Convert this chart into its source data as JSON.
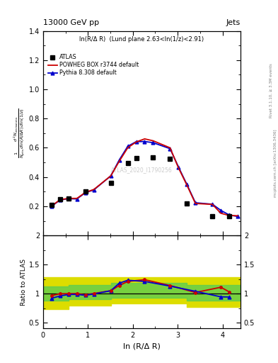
{
  "title_left": "13000 GeV pp",
  "title_right": "Jets",
  "plot_label": "ln(R/Δ R)  (Lund plane 2.63<ln(1/z)<2.91)",
  "watermark": "ATLAS_2020_I1790256",
  "legend_entries": [
    "ATLAS",
    "POWHEG BOX r3744 default",
    "Pythia 8.308 default"
  ],
  "xlabel": "ln (R/Δ R)",
  "ylim_main": [
    0.0,
    1.4
  ],
  "ylim_ratio": [
    0.4,
    2.0
  ],
  "yticks_main": [
    0.2,
    0.4,
    0.6,
    0.8,
    1.0,
    1.2,
    1.4
  ],
  "yticks_ratio": [
    0.5,
    1.0,
    1.5,
    2.0
  ],
  "xlim": [
    0.0,
    4.4
  ],
  "xticks": [
    0,
    1,
    2,
    3,
    4
  ],
  "atlas_x": [
    0.189,
    0.378,
    0.566,
    0.943,
    1.509,
    1.887,
    2.075,
    2.453,
    2.83,
    3.208,
    3.774,
    4.151
  ],
  "atlas_y": [
    0.21,
    0.246,
    0.255,
    0.302,
    0.358,
    0.494,
    0.528,
    0.535,
    0.527,
    0.221,
    0.133,
    0.133
  ],
  "powheg_x": [
    0.189,
    0.378,
    0.566,
    0.754,
    0.943,
    1.132,
    1.509,
    1.698,
    1.887,
    2.075,
    2.264,
    2.453,
    2.83,
    3.019,
    3.208,
    3.396,
    3.774,
    3.962,
    4.151,
    4.34
  ],
  "powheg_y": [
    0.202,
    0.245,
    0.254,
    0.254,
    0.295,
    0.315,
    0.408,
    0.508,
    0.6,
    0.64,
    0.661,
    0.648,
    0.6,
    0.462,
    0.343,
    0.219,
    0.213,
    0.152,
    0.137,
    0.135
  ],
  "pythia_x": [
    0.189,
    0.378,
    0.566,
    0.754,
    0.943,
    1.132,
    1.509,
    1.698,
    1.887,
    2.075,
    2.264,
    2.453,
    2.83,
    3.019,
    3.208,
    3.396,
    3.774,
    3.962,
    4.151,
    4.34
  ],
  "pythia_y": [
    0.2,
    0.243,
    0.252,
    0.25,
    0.293,
    0.312,
    0.408,
    0.517,
    0.61,
    0.642,
    0.643,
    0.635,
    0.594,
    0.468,
    0.348,
    0.224,
    0.214,
    0.172,
    0.14,
    0.13
  ],
  "ratio_powheg_x": [
    0.189,
    0.378,
    0.566,
    0.754,
    0.943,
    1.132,
    1.509,
    1.698,
    1.887,
    2.264,
    2.83,
    3.396,
    3.962,
    4.151
  ],
  "ratio_powheg_y": [
    0.965,
    0.998,
    0.999,
    1.002,
    0.978,
    1.003,
    1.05,
    1.14,
    1.21,
    1.24,
    1.14,
    1.02,
    1.11,
    1.03
  ],
  "ratio_pythia_x": [
    0.189,
    0.378,
    0.566,
    0.754,
    0.943,
    1.132,
    1.509,
    1.698,
    1.887,
    2.264,
    2.83,
    3.396,
    3.962,
    4.151
  ],
  "ratio_pythia_y": [
    0.92,
    0.96,
    0.985,
    0.987,
    0.972,
    0.994,
    1.05,
    1.18,
    1.23,
    1.21,
    1.13,
    1.04,
    0.945,
    0.942
  ],
  "green_band_x": [
    0.0,
    0.566,
    1.509,
    2.264,
    3.208,
    3.774,
    4.4
  ],
  "green_band_lo": [
    0.88,
    0.9,
    0.93,
    0.93,
    0.875,
    0.875,
    0.875
  ],
  "green_band_hi": [
    1.12,
    1.15,
    1.18,
    1.18,
    1.15,
    1.15,
    1.15
  ],
  "yellow_band_x": [
    0.0,
    0.566,
    1.509,
    2.264,
    3.208,
    3.774,
    4.4
  ],
  "yellow_band_lo": [
    0.73,
    0.8,
    0.83,
    0.83,
    0.77,
    0.77,
    0.77
  ],
  "yellow_band_hi": [
    1.28,
    1.28,
    1.28,
    1.28,
    1.28,
    1.28,
    1.28
  ],
  "atlas_color": "#000000",
  "powheg_color": "#cc0000",
  "pythia_color": "#0000cc",
  "green_band_color": "#55cc55",
  "yellow_band_color": "#dddd00",
  "bg_color": "#ffffff"
}
